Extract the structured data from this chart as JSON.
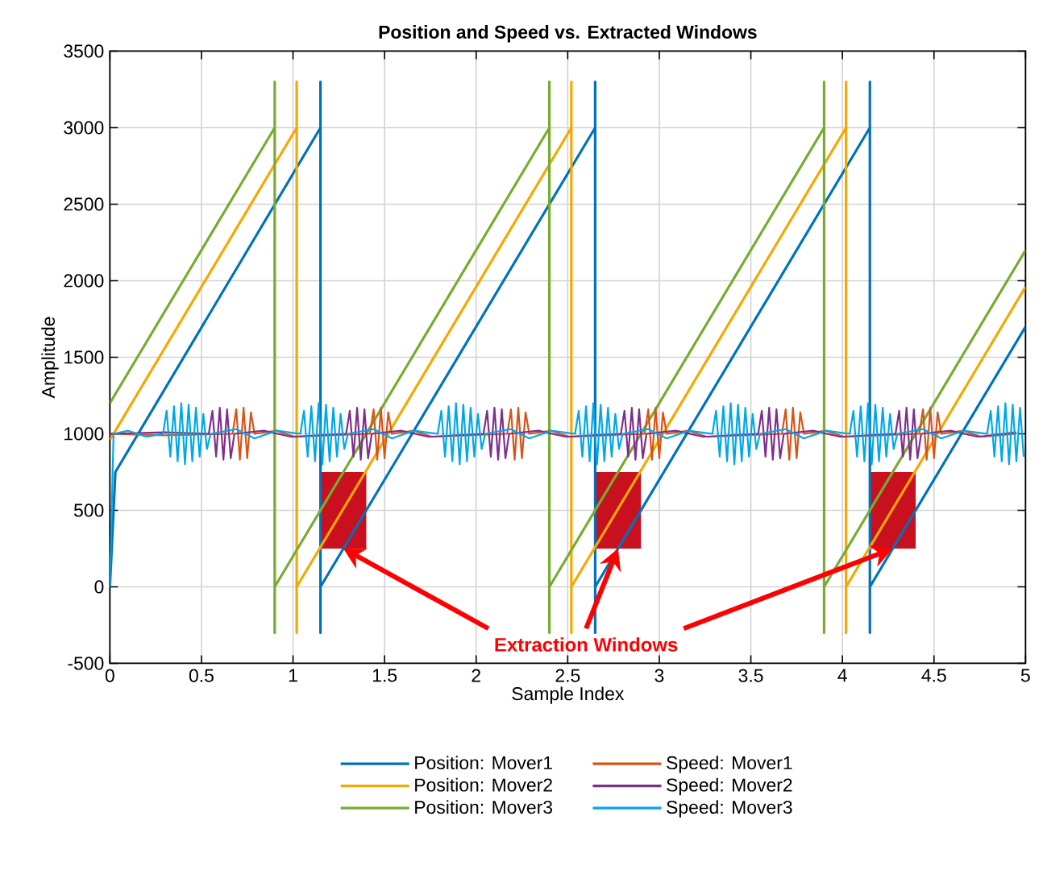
{
  "chart_data": {
    "type": "line",
    "title": "Position and Speed vs. Extracted Windows",
    "xlabel": "Sample Index",
    "ylabel": "Amplitude",
    "xlim": [
      0,
      5
    ],
    "ylim": [
      -500,
      3500
    ],
    "xticks": [
      0,
      0.5,
      1,
      1.5,
      2,
      2.5,
      3,
      3.5,
      4,
      4.5,
      5
    ],
    "yticks": [
      -500,
      0,
      500,
      1000,
      1500,
      2000,
      2500,
      3000,
      3500
    ],
    "grid": true,
    "legend": "bottom",
    "annotations": [
      {
        "text": "Extraction Windows",
        "x": 1.275,
        "y": 250
      }
    ],
    "series": [
      {
        "name": "Position: Mover1",
        "color": "#0072BD",
        "x": [
          0,
          0.03,
          1.15,
          1.15,
          1.15,
          1.15,
          2.65,
          2.65,
          2.65,
          2.65,
          4.15,
          4.15,
          4.15,
          4.15,
          5
        ],
        "values": [
          0,
          750,
          3000,
          3300,
          -300,
          0,
          3000,
          3300,
          -300,
          0,
          3000,
          3300,
          -300,
          0,
          1700
        ]
      },
      {
        "name": "Position: Mover2",
        "color": "#F5A800",
        "x": [
          0,
          1.02,
          1.02,
          1.02,
          1.02,
          2.52,
          2.52,
          2.52,
          2.52,
          4.02,
          4.02,
          4.02,
          4.02,
          5
        ],
        "values": [
          960,
          3000,
          3300,
          -300,
          0,
          3000,
          3300,
          -300,
          0,
          3000,
          3300,
          -300,
          0,
          1960
        ]
      },
      {
        "name": "Position: Mover3",
        "color": "#77AC30",
        "x": [
          0,
          0.9,
          0.9,
          0.9,
          0.9,
          2.4,
          2.4,
          2.4,
          2.4,
          3.9,
          3.9,
          3.9,
          3.9,
          5
        ],
        "values": [
          1200,
          3000,
          3300,
          -300,
          0,
          3000,
          3300,
          -300,
          0,
          3000,
          3300,
          -300,
          0,
          2200
        ]
      },
      {
        "name": "Speed: Mover1",
        "color": "#D95319",
        "x": [
          0,
          0.3,
          0.67,
          0.69,
          0.71,
          0.73,
          0.75,
          0.77,
          0.79,
          0.91,
          1.01,
          1.42,
          1.44,
          1.46,
          1.48,
          1.5,
          1.52,
          1.54,
          1.66,
          1.76,
          2.17,
          2.19,
          2.21,
          2.23,
          2.25,
          2.27,
          2.29,
          2.41,
          2.51,
          2.92,
          2.94,
          2.96,
          2.98,
          3.0,
          3.02,
          3.04,
          3.16,
          3.26,
          3.67,
          3.69,
          3.71,
          3.73,
          3.75,
          3.77,
          3.79,
          3.91,
          4.01,
          4.42,
          4.44,
          4.46,
          4.48,
          4.5,
          4.52,
          4.54,
          4.66,
          4.76,
          4.95
        ],
        "values": [
          1000,
          990,
          1000,
          1160,
          830,
          1170,
          840,
          1140,
          1000,
          1020,
          980,
          1000,
          1160,
          830,
          1170,
          840,
          1140,
          1000,
          1020,
          980,
          1000,
          1160,
          830,
          1170,
          840,
          1140,
          1000,
          1020,
          980,
          1000,
          1160,
          830,
          1170,
          840,
          1140,
          1000,
          1020,
          980,
          1000,
          1160,
          830,
          1170,
          840,
          1140,
          1000,
          1020,
          980,
          1000,
          1160,
          830,
          1170,
          840,
          1140,
          1000,
          1020,
          980,
          1000
        ]
      },
      {
        "name": "Speed: Mover2",
        "color": "#7E2F8E",
        "x": [
          0,
          0.3,
          0.54,
          0.56,
          0.58,
          0.6,
          0.62,
          0.64,
          0.66,
          0.68,
          0.84,
          0.99,
          1.29,
          1.31,
          1.33,
          1.35,
          1.37,
          1.39,
          1.41,
          1.43,
          1.59,
          1.74,
          2.04,
          2.06,
          2.08,
          2.1,
          2.12,
          2.14,
          2.16,
          2.18,
          2.34,
          2.49,
          2.79,
          2.81,
          2.83,
          2.85,
          2.87,
          2.89,
          2.91,
          2.93,
          3.09,
          3.24,
          3.54,
          3.56,
          3.58,
          3.6,
          3.62,
          3.64,
          3.66,
          3.68,
          3.84,
          3.99,
          4.29,
          4.31,
          4.33,
          4.35,
          4.37,
          4.39,
          4.41,
          4.43,
          4.59,
          4.74,
          4.95
        ],
        "values": [
          1000,
          1010,
          1000,
          1150,
          850,
          1170,
          830,
          1160,
          840,
          1000,
          1020,
          980,
          1000,
          1150,
          850,
          1170,
          830,
          1160,
          840,
          1000,
          1020,
          980,
          1000,
          1150,
          850,
          1170,
          830,
          1160,
          840,
          1000,
          1020,
          980,
          1000,
          1150,
          850,
          1170,
          830,
          1160,
          840,
          1000,
          1020,
          980,
          1000,
          1150,
          850,
          1170,
          830,
          1160,
          840,
          1000,
          1020,
          980,
          1000,
          1150,
          850,
          1170,
          830,
          1160,
          840,
          1000,
          1020,
          980,
          1010
        ]
      },
      {
        "name": "Speed: Mover3",
        "color": "#00A8E8",
        "x": [
          0,
          0.02,
          0.1,
          0.2,
          0.29,
          0.31,
          0.33,
          0.35,
          0.37,
          0.39,
          0.41,
          0.43,
          0.45,
          0.47,
          0.49,
          0.51,
          0.53,
          0.55,
          0.69,
          0.79,
          0.91,
          1.04,
          1.06,
          1.08,
          1.1,
          1.12,
          1.14,
          1.16,
          1.18,
          1.2,
          1.22,
          1.24,
          1.26,
          1.28,
          1.3,
          1.44,
          1.54,
          1.66,
          1.79,
          1.81,
          1.83,
          1.85,
          1.87,
          1.89,
          1.91,
          1.93,
          1.95,
          1.97,
          1.99,
          2.01,
          2.03,
          2.05,
          2.19,
          2.29,
          2.41,
          2.54,
          2.56,
          2.58,
          2.6,
          2.62,
          2.64,
          2.66,
          2.68,
          2.7,
          2.72,
          2.74,
          2.76,
          2.78,
          2.8,
          2.94,
          3.04,
          3.16,
          3.29,
          3.31,
          3.33,
          3.35,
          3.37,
          3.39,
          3.41,
          3.43,
          3.45,
          3.47,
          3.49,
          3.51,
          3.53,
          3.55,
          3.69,
          3.79,
          3.91,
          4.04,
          4.06,
          4.08,
          4.1,
          4.12,
          4.14,
          4.16,
          4.18,
          4.2,
          4.22,
          4.24,
          4.26,
          4.28,
          4.3,
          4.44,
          4.54,
          4.66,
          4.79,
          4.81,
          4.83,
          4.85,
          4.87,
          4.89,
          4.91,
          4.93,
          4.95,
          4.97,
          4.99
        ],
        "values": [
          0,
          1000,
          1020,
          980,
          1000,
          1150,
          850,
          1180,
          820,
          1200,
          800,
          1190,
          820,
          1170,
          850,
          1130,
          900,
          1000,
          1030,
          970,
          1020,
          1000,
          1150,
          850,
          1180,
          820,
          1200,
          800,
          1190,
          820,
          1170,
          850,
          1130,
          900,
          1000,
          1030,
          970,
          1020,
          1000,
          1150,
          850,
          1180,
          820,
          1200,
          800,
          1190,
          820,
          1170,
          850,
          1130,
          900,
          1000,
          1030,
          970,
          1020,
          1000,
          1150,
          850,
          1180,
          820,
          1200,
          800,
          1190,
          820,
          1170,
          850,
          1130,
          900,
          1000,
          1030,
          970,
          1020,
          1000,
          1150,
          850,
          1180,
          820,
          1200,
          800,
          1190,
          820,
          1170,
          850,
          1130,
          900,
          1000,
          1030,
          970,
          1020,
          1000,
          1150,
          850,
          1180,
          820,
          1200,
          800,
          1190,
          820,
          1170,
          850,
          1130,
          900,
          1000,
          1030,
          970,
          1020,
          1000,
          1150,
          850,
          1180,
          820,
          1200,
          800,
          1190,
          820,
          1170,
          850
        ]
      },
      {
        "type": "bar",
        "color": "#C8101E",
        "x": [
          1.275,
          2.775,
          4.275
        ],
        "values": [
          500,
          500,
          500
        ],
        "base": [
          250,
          250,
          250
        ]
      }
    ]
  }
}
